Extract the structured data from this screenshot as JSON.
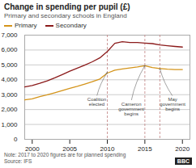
{
  "chart_data": {
    "type": "line",
    "title": "Change in spending per pupil (£)",
    "subtitle": "Primary and secondary schools in England",
    "x": [
      1999,
      2000,
      2001,
      2002,
      2003,
      2004,
      2005,
      2006,
      2007,
      2008,
      2009,
      2010,
      2011,
      2012,
      2013,
      2014,
      2015,
      2016,
      2017,
      2018,
      2019,
      2020
    ],
    "series": [
      {
        "name": "Primary",
        "color": "#D4941A",
        "values": [
          2650,
          2720,
          2870,
          2990,
          3130,
          3280,
          3430,
          3560,
          3710,
          3870,
          4050,
          4450,
          4650,
          4730,
          4790,
          4860,
          4950,
          4820,
          4760,
          4710,
          4690,
          4690
        ]
      },
      {
        "name": "Secondary",
        "color": "#8B1A1A",
        "values": [
          3520,
          3610,
          3760,
          3930,
          4130,
          4350,
          4580,
          4780,
          4990,
          5210,
          5470,
          5900,
          6450,
          6560,
          6510,
          6500,
          6460,
          6430,
          6340,
          6290,
          6240,
          6200
        ]
      }
    ],
    "xlim": [
      1999,
      2021
    ],
    "ylim": [
      0,
      7000
    ],
    "xticks": [
      2000,
      2005,
      2010,
      2015,
      2020
    ],
    "yticks": [
      0,
      {
        "value": 1000,
        "label": "1,000"
      },
      {
        "value": 2000,
        "label": "2,000"
      },
      {
        "value": 3000,
        "label": "3,000"
      },
      {
        "value": 4000,
        "label": "4,000"
      },
      {
        "value": 5000,
        "label": "5,000"
      },
      {
        "value": 6000,
        "label": "6,000"
      },
      {
        "value": 7000,
        "label": "7,000"
      }
    ],
    "grid": "y",
    "legend": "top",
    "vlines": {
      "x": [
        2010,
        2015,
        2017
      ],
      "color": "#C08080"
    },
    "annotations": [
      {
        "text": "Coalition\nelected",
        "x": 2010,
        "y": 4500,
        "text_x": 2008.6,
        "text_y": 2900
      },
      {
        "text": "Cameron\ngovernment\nbegins",
        "x": 2015,
        "y": 4950,
        "text_x": 2013.2,
        "text_y": 2600
      },
      {
        "text": "May\ngovernment\nbegins",
        "x": 2017,
        "y": 4750,
        "text_x": 2018.7,
        "text_y": 2900
      }
    ],
    "note": "Note: 2017 to 2020 figures are for planned spending",
    "source": "Source: IFS",
    "logo": "BBC"
  }
}
